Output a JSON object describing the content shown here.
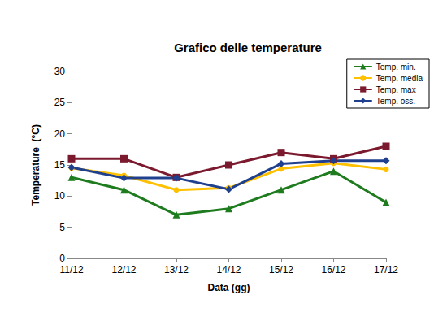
{
  "chart_data": {
    "type": "line",
    "title": "Grafico delle temperature",
    "x_label": "Data (gg)",
    "y_label": "Temperature  (°C)",
    "categories": [
      "11/12",
      "12/12",
      "13/12",
      "14/12",
      "15/12",
      "16/12",
      "17/12"
    ],
    "series": [
      {
        "name": "Temp. min.",
        "color": "#1e7b1e",
        "marker": "triangle",
        "values": [
          13,
          11,
          7,
          8,
          11,
          14,
          9
        ]
      },
      {
        "name": "Temp. media",
        "color": "#ffc000",
        "marker": "circle",
        "values": [
          14.5,
          13.3,
          11,
          11.3,
          14.4,
          15.3,
          14.3
        ]
      },
      {
        "name": "Temp. max",
        "color": "#7b1a2e",
        "marker": "square",
        "values": [
          16,
          16,
          13,
          15,
          17,
          16,
          18
        ]
      },
      {
        "name": "Temp. oss.",
        "color": "#1f3f8f",
        "marker": "diamond",
        "values": [
          14.6,
          12.9,
          12.9,
          11.1,
          15.2,
          15.7,
          15.7
        ]
      }
    ],
    "ylim": [
      0,
      30
    ],
    "yticks": [
      0,
      5,
      10,
      15,
      20,
      25,
      30
    ],
    "grid": false,
    "legend": "upper right"
  }
}
